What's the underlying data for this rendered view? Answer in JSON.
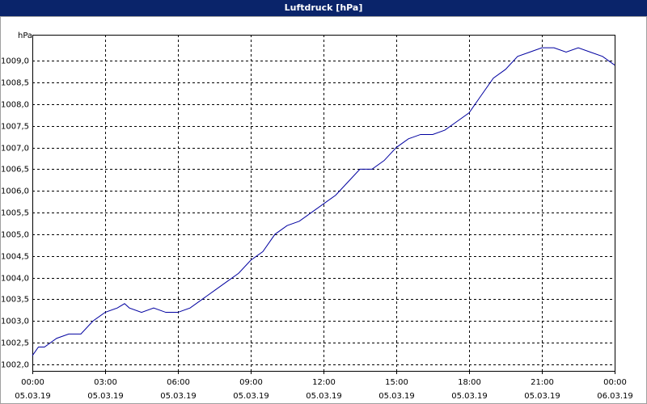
{
  "chart_data": {
    "type": "line",
    "title": "Luftdruck [hPa]",
    "y_label": "hPa",
    "x": [
      0,
      0.25,
      0.5,
      1,
      1.5,
      2,
      2.5,
      3,
      3.5,
      3.8,
      4,
      4.5,
      5,
      5.5,
      6,
      6.5,
      7,
      7.5,
      8,
      8.5,
      9,
      9.5,
      10,
      10.5,
      11,
      11.5,
      12,
      12.5,
      13,
      13.5,
      14,
      14.5,
      15,
      15.5,
      16,
      16.5,
      17,
      17.5,
      18,
      18.5,
      19,
      19.5,
      20,
      20.5,
      21,
      21.5,
      22,
      22.5,
      23,
      23.5,
      24
    ],
    "series": [
      {
        "name": "Luftdruck",
        "color": "#0000a0",
        "values": [
          1002.2,
          1002.4,
          1002.4,
          1002.6,
          1002.7,
          1002.7,
          1003.0,
          1003.2,
          1003.3,
          1003.4,
          1003.3,
          1003.2,
          1003.3,
          1003.2,
          1003.2,
          1003.3,
          1003.5,
          1003.7,
          1003.9,
          1004.1,
          1004.4,
          1004.6,
          1005.0,
          1005.2,
          1005.3,
          1005.5,
          1005.7,
          1005.9,
          1006.2,
          1006.5,
          1006.5,
          1006.7,
          1007.0,
          1007.2,
          1007.3,
          1007.3,
          1007.4,
          1007.6,
          1007.8,
          1008.2,
          1008.6,
          1008.8,
          1009.1,
          1009.2,
          1009.3,
          1009.3,
          1009.2,
          1009.3,
          1009.2,
          1009.1,
          1008.9
        ]
      }
    ],
    "xlim": [
      0,
      24
    ],
    "xticks": [
      {
        "value": 0,
        "label": "00:00"
      },
      {
        "value": 3,
        "label": "03:00"
      },
      {
        "value": 6,
        "label": "06:00"
      },
      {
        "value": 9,
        "label": "09:00"
      },
      {
        "value": 12,
        "label": "12:00"
      },
      {
        "value": 15,
        "label": "15:00"
      },
      {
        "value": 18,
        "label": "18:00"
      },
      {
        "value": 21,
        "label": "21:00"
      },
      {
        "value": 24,
        "label": "00:00"
      }
    ],
    "xtick_dates": [
      "05.03.19",
      "05.03.19",
      "05.03.19",
      "05.03.19",
      "05.03.19",
      "05.03.19",
      "05.03.19",
      "05.03.19",
      "06.03.19"
    ],
    "ylim": [
      1001.85,
      1009.6
    ],
    "yticks": [
      {
        "value": 1002,
        "label": "1002,0"
      },
      {
        "value": 1002.5,
        "label": "1002,5"
      },
      {
        "value": 1003,
        "label": "1003,0"
      },
      {
        "value": 1003.5,
        "label": "1003,5"
      },
      {
        "value": 1004,
        "label": "1004,0"
      },
      {
        "value": 1004.5,
        "label": "1004,5"
      },
      {
        "value": 1005,
        "label": "1005,0"
      },
      {
        "value": 1005.5,
        "label": "1005,5"
      },
      {
        "value": 1006,
        "label": "1006,0"
      },
      {
        "value": 1006.5,
        "label": "1006,5"
      },
      {
        "value": 1007,
        "label": "1007,0"
      },
      {
        "value": 1007.5,
        "label": "1007,5"
      },
      {
        "value": 1008,
        "label": "1008,0"
      },
      {
        "value": 1008.5,
        "label": "1008,5"
      },
      {
        "value": 1009,
        "label": "1009,0"
      }
    ],
    "grid": true
  }
}
